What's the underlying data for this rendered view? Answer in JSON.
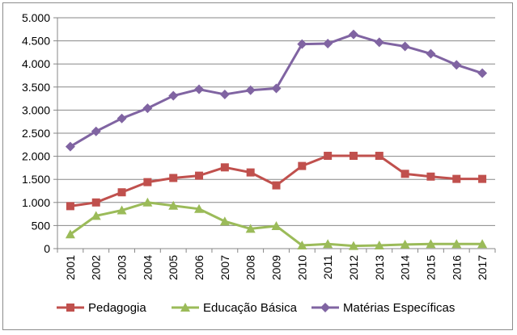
{
  "chart_data": {
    "type": "line",
    "categories": [
      "2001",
      "2002",
      "2003",
      "2004",
      "2005",
      "2006",
      "2007",
      "2008",
      "2009",
      "2010",
      "2011",
      "2012",
      "2013",
      "2014",
      "2015",
      "2016",
      "2017"
    ],
    "ylim": [
      0,
      5000
    ],
    "y_ticks": [
      0,
      500,
      1000,
      1500,
      2000,
      2500,
      3000,
      3500,
      4000,
      4500,
      5000
    ],
    "y_tick_labels": [
      "0",
      "500",
      "1.000",
      "1.500",
      "2.000",
      "2.500",
      "3.000",
      "3.500",
      "4.000",
      "4.500",
      "5.000"
    ],
    "grid": true,
    "legend_position": "bottom",
    "series": [
      {
        "name": "Pedagogia",
        "color": "#c0504d",
        "marker": "square",
        "values": [
          920,
          1000,
          1220,
          1440,
          1530,
          1580,
          1760,
          1650,
          1370,
          1790,
          2010,
          2010,
          2010,
          1620,
          1560,
          1510,
          1510
        ]
      },
      {
        "name": "Educação Básica",
        "color": "#9bbb59",
        "marker": "triangle",
        "values": [
          310,
          710,
          830,
          1000,
          930,
          860,
          590,
          430,
          490,
          70,
          100,
          60,
          70,
          90,
          100,
          100,
          100
        ]
      },
      {
        "name": "Matérias Específicas",
        "color": "#8064a2",
        "marker": "diamond",
        "values": [
          2210,
          2540,
          2820,
          3040,
          3310,
          3450,
          3340,
          3430,
          3470,
          4430,
          4440,
          4640,
          4470,
          4380,
          4220,
          3980,
          3800
        ]
      }
    ]
  }
}
